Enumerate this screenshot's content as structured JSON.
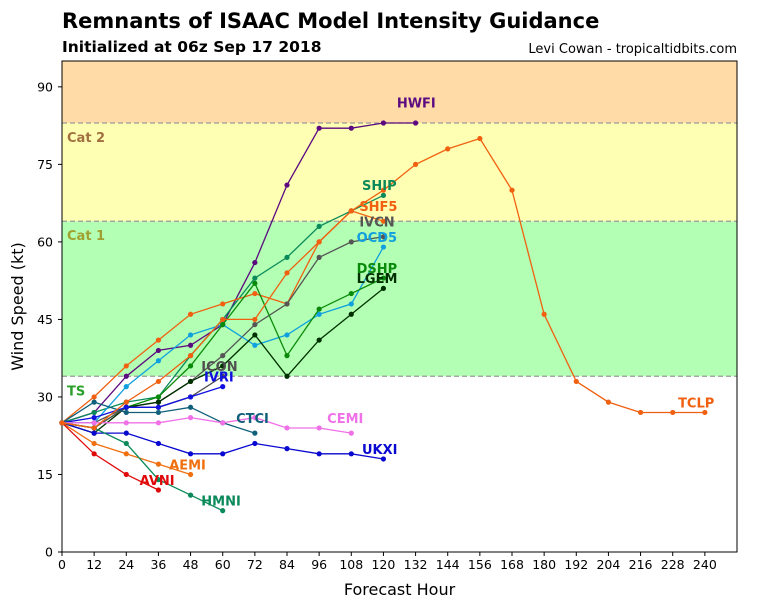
{
  "header": {
    "title": "Remnants of ISAAC Model Intensity Guidance",
    "subtitle": "Initialized at 06z Sep 17 2018",
    "credit": "Levi Cowan - tropicaltidbits.com"
  },
  "chart_data": {
    "type": "line",
    "xlabel": "Forecast Hour",
    "ylabel": "Wind Speed (kt)",
    "xlim": [
      0,
      252
    ],
    "ylim": [
      0,
      95
    ],
    "xticks": [
      0,
      12,
      24,
      36,
      48,
      60,
      72,
      84,
      96,
      108,
      120,
      132,
      144,
      156,
      168,
      180,
      192,
      204,
      216,
      228,
      240
    ],
    "yticks": [
      0,
      15,
      30,
      45,
      60,
      75,
      90
    ],
    "bands": [
      {
        "label": "",
        "from": 0,
        "to": 34,
        "color": "#ffffff",
        "label_color": "#000000"
      },
      {
        "label": "TS",
        "from": 34,
        "to": 64,
        "color": "#b3ffb3",
        "label_color": "#2aa02a"
      },
      {
        "label": "Cat 1",
        "from": 64,
        "to": 83,
        "color": "#ffffb3",
        "label_color": "#a0a030"
      },
      {
        "label": "Cat 2",
        "from": 83,
        "to": 95,
        "color": "#ffdba8",
        "label_color": "#a07040"
      }
    ],
    "series": [
      {
        "name": "HWFI",
        "color": "#5b0a80",
        "x": [
          0,
          12,
          24,
          36,
          48,
          60,
          72,
          84,
          96,
          108,
          120,
          132
        ],
        "y": [
          25,
          27,
          34,
          39,
          40,
          44,
          56,
          71,
          82,
          82,
          83,
          83
        ]
      },
      {
        "name": "SHIP",
        "color": "#0a8a5a",
        "x": [
          0,
          12,
          24,
          36,
          48,
          60,
          72,
          84,
          96,
          108,
          120
        ],
        "y": [
          25,
          27,
          29,
          30,
          38,
          45,
          53,
          57,
          63,
          66,
          69
        ]
      },
      {
        "name": "SHF5",
        "color": "#f06010",
        "x": [
          0,
          12,
          24,
          36,
          48,
          60,
          72,
          84,
          96,
          108,
          120
        ],
        "y": [
          25,
          30,
          36,
          41,
          46,
          48,
          50,
          48,
          60,
          66,
          64
        ]
      },
      {
        "name": "IVCN",
        "color": "#555555",
        "x": [
          0,
          12,
          24,
          36,
          48,
          60,
          72,
          84,
          96,
          108,
          120
        ],
        "y": [
          25,
          25,
          28,
          29,
          33,
          38,
          44,
          48,
          57,
          60,
          61
        ]
      },
      {
        "name": "OCD5",
        "color": "#10a0e0",
        "x": [
          0,
          12,
          24,
          36,
          48,
          60,
          72,
          84,
          96,
          108,
          120
        ],
        "y": [
          25,
          25,
          32,
          37,
          42,
          44,
          40,
          42,
          46,
          48,
          59
        ]
      },
      {
        "name": "DSHP",
        "color": "#0a8a0a",
        "x": [
          0,
          12,
          24,
          36,
          48,
          60,
          72,
          84,
          96,
          108,
          120
        ],
        "y": [
          25,
          24,
          28,
          30,
          36,
          44,
          52,
          38,
          47,
          50,
          53
        ]
      },
      {
        "name": "LGEM",
        "color": "#003000",
        "x": [
          0,
          12,
          24,
          36,
          48,
          60,
          72,
          84,
          96,
          108,
          120
        ],
        "y": [
          25,
          23,
          28,
          29,
          33,
          36,
          42,
          34,
          41,
          46,
          51
        ]
      },
      {
        "name": "ICON",
        "color": "#505050",
        "x": [
          0,
          12,
          24,
          36,
          48,
          60
        ],
        "y": [
          25,
          24,
          28,
          28,
          30,
          34
        ]
      },
      {
        "name": "IVRI",
        "color": "#1010e0",
        "x": [
          0,
          12,
          24,
          36,
          48,
          60
        ],
        "y": [
          25,
          26,
          28,
          28,
          30,
          32
        ]
      },
      {
        "name": "CTCI",
        "color": "#10607a",
        "x": [
          0,
          12,
          24,
          36,
          48,
          60,
          72
        ],
        "y": [
          25,
          29,
          27,
          27,
          28,
          25,
          23
        ]
      },
      {
        "name": "CEMI",
        "color": "#f070e8",
        "x": [
          0,
          12,
          24,
          36,
          48,
          60,
          72,
          84,
          96,
          108
        ],
        "y": [
          25,
          25,
          25,
          25,
          26,
          25,
          26,
          24,
          24,
          23
        ]
      },
      {
        "name": "UKXI",
        "color": "#0808d0",
        "x": [
          0,
          12,
          24,
          36,
          48,
          60,
          72,
          84,
          96,
          108,
          120
        ],
        "y": [
          25,
          23,
          23,
          21,
          19,
          19,
          21,
          20,
          19,
          19,
          18
        ]
      },
      {
        "name": "AEMI",
        "color": "#f07010",
        "x": [
          0,
          12,
          24,
          36,
          48
        ],
        "y": [
          25,
          21,
          19,
          17,
          15
        ]
      },
      {
        "name": "AVNI",
        "color": "#e00808",
        "x": [
          0,
          12,
          24,
          36
        ],
        "y": [
          25,
          19,
          15,
          12
        ]
      },
      {
        "name": "HMNI",
        "color": "#0a8a5a",
        "x": [
          0,
          12,
          24,
          36,
          48,
          60
        ],
        "y": [
          25,
          24,
          21,
          14,
          11,
          8
        ]
      },
      {
        "name": "TCLP",
        "color": "#f06010",
        "x": [
          0,
          12,
          24,
          36,
          48,
          60,
          72,
          84,
          96,
          108,
          120,
          132,
          144,
          156,
          168,
          180,
          192,
          204,
          216,
          228,
          240
        ],
        "y": [
          25,
          24,
          29,
          33,
          38,
          45,
          45,
          54,
          60,
          66,
          70,
          75,
          78,
          80,
          70,
          46,
          33,
          29,
          27,
          27,
          27
        ]
      }
    ],
    "series_labels": [
      {
        "name": "HWFI",
        "x": 125,
        "y": 86
      },
      {
        "name": "SHIP",
        "x": 112,
        "y": 70
      },
      {
        "name": "SHF5",
        "x": 111,
        "y": 66
      },
      {
        "name": "IVCN",
        "x": 111,
        "y": 63
      },
      {
        "name": "OCD5",
        "x": 110,
        "y": 60
      },
      {
        "name": "DSHP",
        "x": 110,
        "y": 54
      },
      {
        "name": "LGEM",
        "x": 110,
        "y": 52
      },
      {
        "name": "ICON",
        "x": 52,
        "y": 35
      },
      {
        "name": "IVRI",
        "x": 53,
        "y": 33
      },
      {
        "name": "CTCI",
        "x": 65,
        "y": 25
      },
      {
        "name": "CEMI",
        "x": 99,
        "y": 25
      },
      {
        "name": "UKXI",
        "x": 112,
        "y": 19
      },
      {
        "name": "AEMI",
        "x": 40,
        "y": 16
      },
      {
        "name": "AVNI",
        "x": 29,
        "y": 13
      },
      {
        "name": "HMNI",
        "x": 52,
        "y": 9
      },
      {
        "name": "TCLP",
        "x": 230,
        "y": 28
      }
    ]
  }
}
